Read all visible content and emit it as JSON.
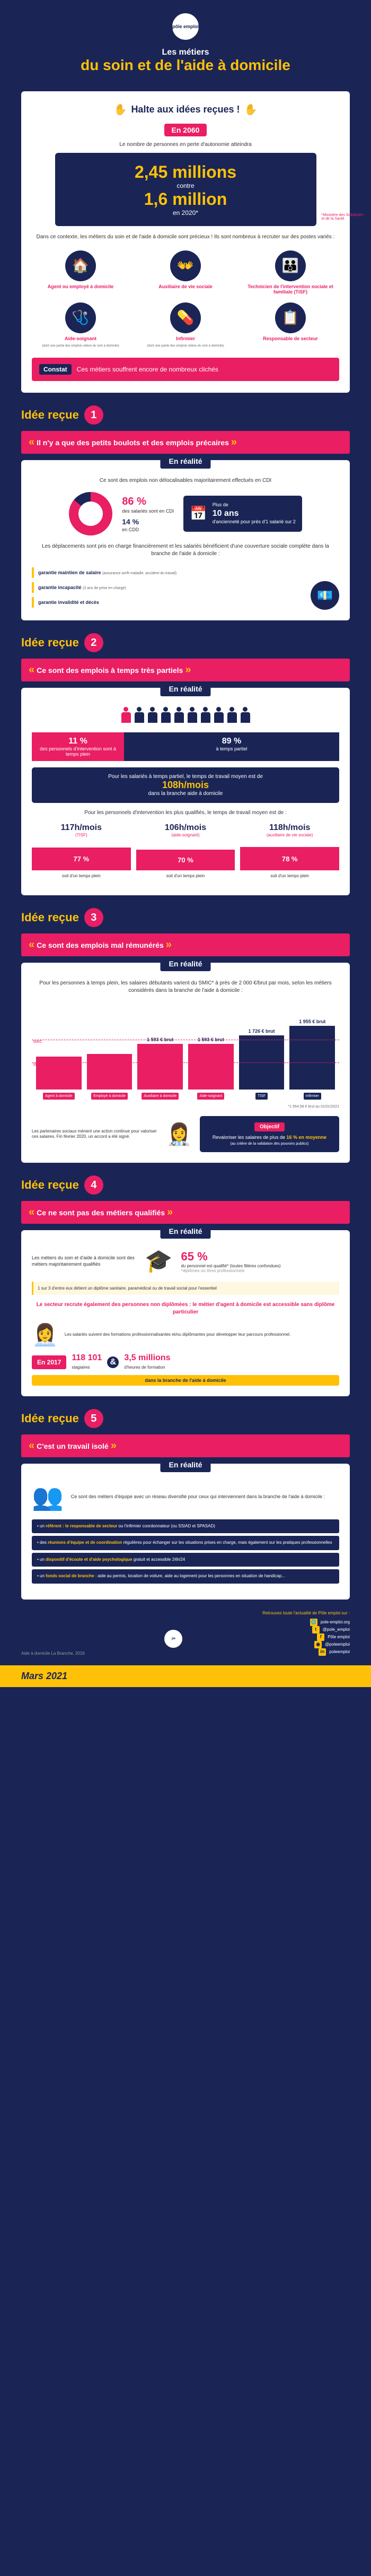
{
  "colors": {
    "navy": "#1a2556",
    "pink": "#e91e63",
    "yellow": "#ffc107",
    "white": "#ffffff"
  },
  "header": {
    "logo": "pôle emploi",
    "line1": "Les métiers",
    "line2": "du soin et de l'aide à domicile"
  },
  "halte": {
    "title": "Halte aux idées reçues !",
    "en2060": "En 2060",
    "sub": "Le nombre de personnes en perte d'autonomie atteindra",
    "big1": "2,45 millions",
    "contre": "contre",
    "big2": "1,6 million",
    "en2020": "en 2020*",
    "source": "*Ministère des Solidarités et de la Santé",
    "context": "Dans ce contexte, les métiers du soin et de l'aide à domicile sont précieux ! Ils sont nombreux à recruter sur des postes variés :",
    "jobs": [
      {
        "label": "Agent ou employé à domicile",
        "ico": "🏠"
      },
      {
        "label": "Auxiliaire de vie sociale",
        "ico": "👐"
      },
      {
        "label": "Technicien de l'intervention sociale et familiale (TISF)",
        "ico": "👪"
      },
      {
        "label": "Aide-soignant",
        "sub": "(dont une partie des emplois relève du soin à domicile)",
        "ico": "🩺"
      },
      {
        "label": "Infirmier",
        "sub": "(dont une partie des emplois relève du soin à domicile)",
        "ico": "💊"
      },
      {
        "label": "Responsable de secteur",
        "ico": "📋"
      }
    ],
    "constat_tag": "Constat",
    "constat": "Ces métiers souffrent encore de nombreux clichés"
  },
  "idee_label": "Idée reçue",
  "i1": {
    "quote": "Il n'y a que des petits boulots et des emplois précaires",
    "realite": "En réalité",
    "sub": "Ce sont des emplois non délocalisables majoritairement effectués en CDI",
    "cdi_pct": "86 %",
    "cdi_lbl": "des salariés sont en CDI",
    "cdd_pct": "14 %",
    "cdd_lbl": "en CDD",
    "ans_pre": "Plus de",
    "ans_big": "10 ans",
    "ans_txt": "d'ancienneté pour près d'1 salarié sur 2",
    "desc": "Les déplacements sont pris en charge financièrement et les salariés bénéficient d'une couverture sociale complète dans la branche de l'aide à domicile :",
    "garanties": [
      {
        "t": "garantie maintien de salaire",
        "s": "(assurance arrêt maladie, accident du travail)"
      },
      {
        "t": "garantie incapacité",
        "s": "(3 ans de prise en charge)"
      },
      {
        "t": "garantie invalidité et décès",
        "s": ""
      }
    ]
  },
  "i2": {
    "quote": "Ce sont des emplois à temps très partiels",
    "realite": "En réalité",
    "people": {
      "pink": 1,
      "navy": 9
    },
    "left_pct": "11 %",
    "left_lbl": "des personnels d'intervention sont à temps plein",
    "right_pct": "89 %",
    "right_lbl": "à temps partiel",
    "band_pre": "Pour les salariés à temps partiel, le temps de travail moyen est de",
    "band_v": "108h/mois",
    "band_post": "dans la branche aide à domicile",
    "qual_sub": "Pour les personnels d'intervention les plus qualifiés, le temps de travail moyen est de :",
    "quals": [
      {
        "v": "117h/mois",
        "j": "(TISF)",
        "p": "77 %",
        "pl": "d'un temps plein",
        "h": 77
      },
      {
        "v": "106h/mois",
        "j": "(aide-soignant)",
        "p": "70 %",
        "pl": "d'un temps plein",
        "h": 70
      },
      {
        "v": "118h/mois",
        "j": "(auxiliaire de vie sociale)",
        "p": "78 %",
        "pl": "d'un temps plein",
        "h": 78
      }
    ]
  },
  "i3": {
    "quote": "Ce sont des emplois mal rémunérés",
    "realite": "En réalité",
    "sub": "Pour les personnes à temps plein, les salaires débutants varient du SMIC* à près de 2 000 €/brut par mois, selon les métiers considérés dans la branche de l'aide à domicile :",
    "smic_lines": [
      {
        "y": 18,
        "lbl": "SMIC"
      },
      {
        "y": 48,
        "lbl": "SMIC"
      }
    ],
    "bars": [
      {
        "lbl": "Agent à domicile",
        "val": "",
        "h": 52,
        "color": "#e91e63"
      },
      {
        "lbl": "Employé à domicile",
        "val": "",
        "h": 56,
        "color": "#e91e63"
      },
      {
        "lbl": "Auxiliaire à domicile",
        "val": "1 593 € brut",
        "h": 72,
        "color": "#e91e63"
      },
      {
        "lbl": "Aide-soignant",
        "val": "1 593 € brut",
        "h": 72,
        "color": "#e91e63"
      },
      {
        "lbl": "TISF",
        "val": "1 726 € brut",
        "h": 85,
        "color": "#1a2556"
      },
      {
        "lbl": "Infirmier",
        "val": "1 955 € brut",
        "h": 100,
        "color": "#1a2556"
      }
    ],
    "smic_note": "*1 554,58 € brut au 01/01/2021",
    "partner_txt": "Les partenaires sociaux mènent une action continue pour valoriser ces salaires. Fin février 2020, un accord a été signé.",
    "obj_title": "Objectif",
    "obj_txt_pre": "Revaloriser les salaires de plus de",
    "obj_v": "16 % en moyenne",
    "obj_txt_post": "(au critère de la validation des pouvoirs publics)"
  },
  "i4": {
    "quote": "Ce ne sont pas des métiers qualifiés",
    "realite": "En réalité",
    "txt": "Les métiers du soin et d'aide à domicile sont des métiers majoritairement qualifiés",
    "pct": "65 %",
    "pct_lbl": "du personnel est qualifié* (toutes filières confondues)",
    "pct_note": "*diplômes ou titres professionnels",
    "yellow": "1 sur 3 d'entre eux détient un diplôme sanitaire, paramédical ou de travail social pour l'essentiel",
    "recrute": "Le secteur recrute également des personnes non diplômées : le métier d'agent à domicile est accessible sans diplôme particulier",
    "form_txt": "Les salariés suivent des formations professionnalisantes et/ou diplômantes pour développer leur parcours professionnel.",
    "en2017": "En 2017",
    "s1": "118 101",
    "s1l": "stagiaires",
    "s2": "3,5 millions",
    "s2l": "d'heures de formation",
    "branch": "dans la branche de l'aide à domicile"
  },
  "i5": {
    "quote": "C'est un travail isolé",
    "realite": "En réalité",
    "txt": "Ce sont des métiers d'équipe avec un réseau diversifié pour ceux qui interviennent dans la branche de l'aide à domicile :",
    "bullets": [
      "un <b>référent : le responsable de secteur</b> ou l'infirmier coordonnateur (ou SSIAD et SPASAD)",
      "des <b>réunions d'équipe et de coordination</b> régulières pour échanger sur les situations prises en charge, mais également sur les pratiques professionnelles",
      "un <b>dispositif d'écoute et d'aide psychologique</b> gratuit et accessible 24h/24",
      "un <b>fonds social de branche</b> : aide au permis, location de voiture, aide au logement pour les personnes en situation de handicap..."
    ]
  },
  "footer": {
    "src": "Aide à domicile La Branche, 2019",
    "retro": "Retrouvez toute l'actualité de Pôle emploi sur :",
    "links": [
      "pole-emploi.org",
      "@pole_emploi",
      "Pôle emploi",
      "@poleemploi",
      "poleemploi"
    ],
    "date": "Mars 2021"
  }
}
